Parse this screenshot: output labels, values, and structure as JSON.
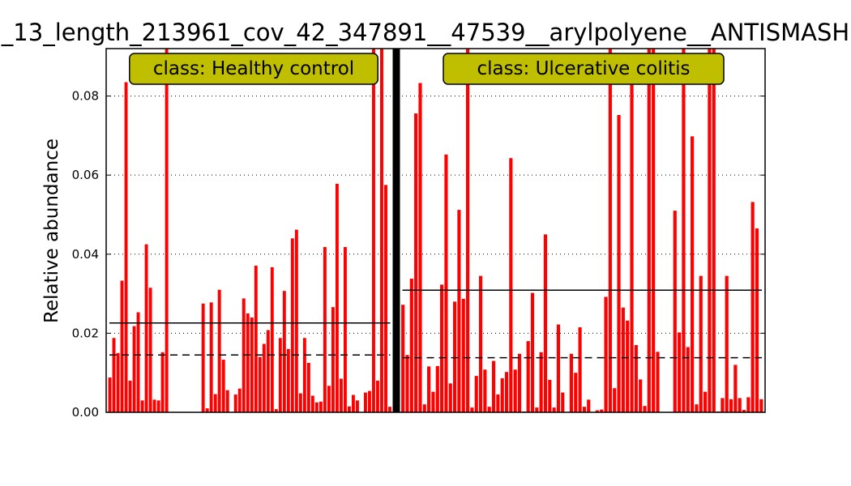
{
  "chart_data": {
    "type": "bar",
    "title": "_13_length_213961_cov_42_347891__47539__arylpolyene__ANTISMASH",
    "xlabel": "",
    "ylabel": "Relative abundance",
    "ylim": [
      0,
      0.092
    ],
    "yticks": [
      "0.00",
      "0.02",
      "0.04",
      "0.06",
      "0.08"
    ],
    "ytick_values": [
      0,
      0.02,
      0.04,
      0.06,
      0.08
    ],
    "grid": "horizontal dotted",
    "bar_color": "#ff0000",
    "groups": [
      {
        "class_label": "class: Healthy control",
        "mean": 0.0226,
        "median": 0.0145,
        "values": [
          0.0088,
          0.0188,
          0.015,
          0.0333,
          0.0835,
          0.008,
          0.0218,
          0.0253,
          0.003,
          0.0425,
          0.0315,
          0.0032,
          0.003,
          0.0152,
          0.095,
          0.0,
          0.0,
          0.0,
          0.0,
          0.0,
          0.0,
          0.0,
          0.0,
          0.0275,
          0.001,
          0.0278,
          0.0046,
          0.031,
          0.0133,
          0.0056,
          0.0,
          0.0045,
          0.006,
          0.0288,
          0.025,
          0.024,
          0.0371,
          0.014,
          0.0173,
          0.0208,
          0.0367,
          0.0008,
          0.0188,
          0.0307,
          0.016,
          0.044,
          0.0462,
          0.0048,
          0.0188,
          0.0125,
          0.0042,
          0.0025,
          0.0027,
          0.0418,
          0.0067,
          0.0266,
          0.0578,
          0.0085,
          0.0418,
          0.0015,
          0.0044,
          0.003,
          0.0,
          0.005,
          0.0054,
          0.095,
          0.008,
          0.095,
          0.0575,
          0.0014
        ]
      },
      {
        "class_label": "class: Ulcerative colitis",
        "mean": 0.0309,
        "median": 0.0138,
        "values": [
          0.0272,
          0.0145,
          0.0338,
          0.0756,
          0.0833,
          0.002,
          0.0116,
          0.0052,
          0.0117,
          0.0323,
          0.0652,
          0.0073,
          0.028,
          0.0512,
          0.0287,
          0.095,
          0.0012,
          0.0092,
          0.0345,
          0.0108,
          0.0014,
          0.013,
          0.0045,
          0.0086,
          0.0102,
          0.0643,
          0.0108,
          0.0148,
          0.0002,
          0.018,
          0.0302,
          0.0012,
          0.0152,
          0.045,
          0.0082,
          0.0012,
          0.0222,
          0.005,
          0.0,
          0.0148,
          0.01,
          0.0215,
          0.0014,
          0.0032,
          0.0,
          0.0005,
          0.0007,
          0.0292,
          0.095,
          0.0061,
          0.0752,
          0.0265,
          0.0232,
          0.0875,
          0.017,
          0.0083,
          0.0016,
          0.095,
          0.095,
          0.0153,
          0.0,
          0.0,
          0.0,
          0.051,
          0.0202,
          0.095,
          0.0165,
          0.0698,
          0.002,
          0.0345,
          0.0052,
          0.095,
          0.095,
          0.0002,
          0.0036,
          0.0345,
          0.0033,
          0.012,
          0.0036,
          0.0006,
          0.0038,
          0.0532,
          0.0465,
          0.0033
        ]
      }
    ]
  }
}
